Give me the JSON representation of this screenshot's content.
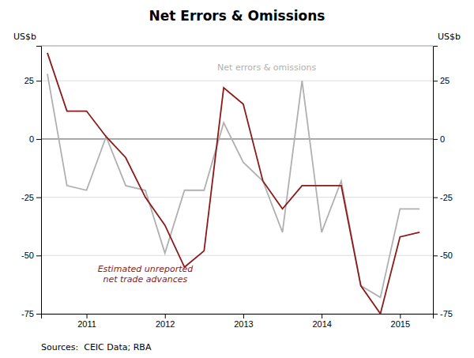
{
  "chart_data": {
    "type": "line",
    "title": "Net Errors & Omissions",
    "ylabel": "US$b",
    "y2label": "US$b",
    "source": "Sources:  CEIC Data; RBA",
    "x": [
      2010.5,
      2010.75,
      2011.0,
      2011.25,
      2011.5,
      2011.75,
      2012.0,
      2012.25,
      2012.5,
      2012.75,
      2013.0,
      2013.25,
      2013.5,
      2013.75,
      2014.0,
      2014.25,
      2014.5,
      2014.75,
      2015.0,
      2015.25
    ],
    "series": [
      {
        "color": "#b0b0b0",
        "values": [
          28,
          -20,
          -22,
          1,
          -20,
          -22,
          -49,
          -22,
          -22,
          7,
          -10,
          -18,
          -40,
          25,
          -40,
          -18,
          -63,
          -68,
          -30,
          -30
        ]
      },
      {
        "color": "#8b1a1a",
        "values": [
          37,
          12,
          12,
          1,
          -8,
          -25,
          -37,
          -55,
          -48,
          22,
          15,
          -18,
          -30,
          -20,
          -20,
          -20,
          -63,
          -75,
          -42,
          -40
        ]
      }
    ],
    "annotations": [
      {
        "text": "Estimated unreported\nnet trade advances",
        "x": 2011.75,
        "y": -58,
        "color": "#8b1a1a"
      },
      {
        "text": "Net errors & omissions",
        "x": 2013.3,
        "y": 31,
        "color": "#b0b0b0"
      }
    ],
    "xlim": [
      2010.42,
      2015.42
    ],
    "xticks": [
      2011,
      2012,
      2013,
      2014,
      2015
    ],
    "ylim": [
      -75,
      40
    ],
    "yticks": [
      -75,
      -50,
      -25,
      0,
      25
    ],
    "y2lim": [
      -75,
      40
    ],
    "y2ticks": [
      -75,
      -50,
      -25,
      0,
      25
    ],
    "grid": true
  }
}
